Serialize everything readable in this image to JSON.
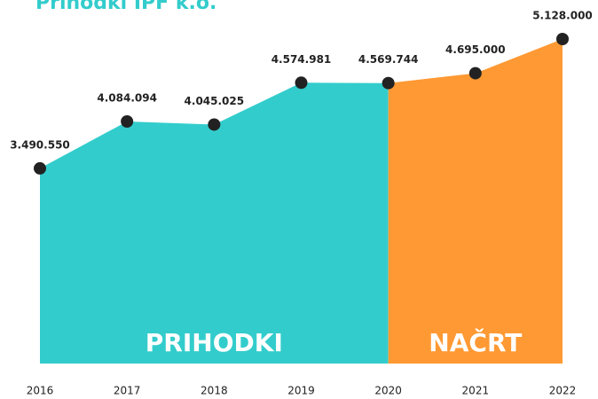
{
  "chart_data": {
    "type": "area",
    "title": "Prihodki IPF k.o.",
    "categories": [
      "2016",
      "2017",
      "2018",
      "2019",
      "2020",
      "2021",
      "2022"
    ],
    "series": [
      {
        "name": "PRIHODKI",
        "color": "#33cccc",
        "values": [
          3490550,
          4084094,
          4045025,
          4574981,
          4569744,
          null,
          null
        ],
        "value_labels": [
          "3.490.550",
          "4.084.094",
          "4.045.025",
          "4.574.981",
          "4.569.744",
          null,
          null
        ]
      },
      {
        "name": "NAČRT",
        "color": "#ff9933",
        "values": [
          null,
          null,
          null,
          null,
          4569744,
          4695000,
          5128000
        ],
        "value_labels": [
          null,
          null,
          null,
          null,
          null,
          "4.695.000",
          "5.128.000"
        ]
      }
    ],
    "ylim": [
      1020000,
      5128000
    ]
  }
}
